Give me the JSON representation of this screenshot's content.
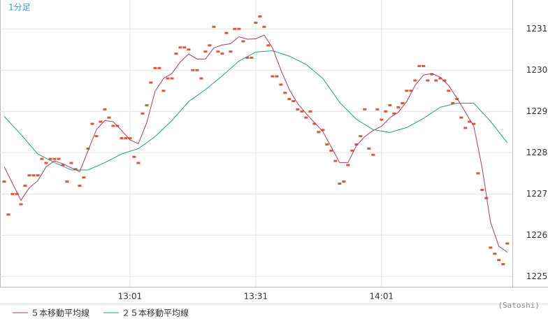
{
  "chart_data": {
    "type": "line",
    "title": "1分足",
    "credit": "(Satoshi)",
    "x": [
      0,
      1,
      2,
      3,
      4,
      5,
      6,
      7,
      8,
      9,
      10,
      11,
      12,
      13,
      14,
      15,
      16,
      17,
      18,
      19,
      20,
      21,
      22,
      23,
      24,
      25,
      26,
      27,
      28,
      29,
      30,
      31,
      32,
      33,
      34,
      35,
      36,
      37,
      38,
      39,
      40,
      41,
      42,
      43,
      44,
      45,
      46,
      47,
      48,
      49,
      50,
      51,
      52,
      53,
      54,
      55,
      56,
      57,
      58,
      59,
      60,
      61,
      62,
      63,
      64,
      65,
      66,
      67,
      68,
      69,
      70,
      71,
      72,
      73,
      74,
      75,
      76,
      77,
      78,
      79,
      80,
      81,
      82,
      83,
      84,
      85,
      86,
      87,
      88,
      89,
      90,
      91,
      92,
      93,
      94,
      95,
      96,
      97,
      98,
      99,
      100,
      101,
      102,
      103,
      104,
      105,
      106,
      107,
      108,
      109,
      110,
      111,
      112,
      113,
      114,
      115,
      116,
      117,
      118,
      119,
      120
    ],
    "xlim": [
      -1,
      121.2
    ],
    "xticks": [
      {
        "value": 30,
        "label": "13:01"
      },
      {
        "value": 60,
        "label": "13:31"
      },
      {
        "value": 90,
        "label": "14:01"
      }
    ],
    "ylim": [
      1224.75,
      1231.7
    ],
    "yticks": [
      1225,
      1226,
      1227,
      1228,
      1229,
      1230,
      1231
    ],
    "grid": true,
    "legend": "bottom-left",
    "series": [
      {
        "color": "#d9583b",
        "marker": "dash",
        "values": [
          1227.3,
          1226.5,
          1227.0,
          1227.0,
          1226.75,
          1227.2,
          1227.45,
          1227.45,
          1227.45,
          1227.85,
          1227.75,
          1227.85,
          1227.85,
          1227.85,
          1227.7,
          1227.3,
          1227.75,
          1227.6,
          1227.2,
          1227.4,
          1228.1,
          1228.7,
          1228.4,
          1228.75,
          1229.05,
          1228.85,
          1228.65,
          1228.65,
          1228.35,
          1228.35,
          1228.35,
          1227.9,
          1227.75,
          1228.95,
          1229.15,
          1229.7,
          1230.05,
          1230.05,
          1229.5,
          1229.8,
          1229.8,
          1230.4,
          1230.55,
          1230.55,
          1230.5,
          1230.0,
          1230.0,
          1229.8,
          1230.45,
          1230.6,
          1231.05,
          1230.45,
          1230.4,
          1230.9,
          1230.45,
          1231.0,
          1231.0,
          1230.7,
          1230.3,
          1230.3,
          1231.15,
          1231.3,
          1231.05,
          1230.6,
          1229.85,
          1229.85,
          1229.65,
          1229.45,
          1229.3,
          1229.25,
          1229.05,
          1229.0,
          1228.85,
          1229.0,
          1228.7,
          1228.5,
          1228.55,
          1228.2,
          1228.05,
          1227.8,
          1227.25,
          1227.3,
          1227.7,
          1228.05,
          1228.2,
          1228.4,
          1229.05,
          1228.1,
          1227.95,
          1229.05,
          1228.8,
          1229.0,
          1229.15,
          1228.95,
          1229.1,
          1229.2,
          1229.5,
          1229.5,
          1229.75,
          1230.1,
          1230.1,
          1229.75,
          1229.9,
          1229.75,
          1229.8,
          1229.75,
          1229.5,
          1229.2,
          1229.3,
          1228.85,
          1228.6,
          1228.75,
          1228.7,
          1227.5,
          1227.1,
          1226.9,
          1225.7,
          1225.55,
          1225.4,
          1225.3,
          1225.8
        ]
      },
      {
        "name": "５本移動平均線",
        "color": "#a83c64",
        "marker": "line",
        "x": [
          0,
          2,
          4,
          6,
          8,
          10,
          12,
          14,
          16,
          18,
          20,
          22,
          24,
          26,
          28,
          30,
          32,
          34,
          36,
          38,
          40,
          42,
          44,
          46,
          48,
          50,
          52,
          54,
          56,
          58,
          60,
          62,
          64,
          66,
          68,
          70,
          72,
          74,
          76,
          78,
          80,
          82,
          84,
          86,
          88,
          90,
          92,
          94,
          96,
          98,
          100,
          102,
          104,
          106,
          108,
          110,
          112,
          114,
          116,
          118,
          120
        ],
        "values": [
          1227.66,
          1227.25,
          1226.85,
          1227.15,
          1227.32,
          1227.66,
          1227.8,
          1227.73,
          1227.63,
          1227.54,
          1228.05,
          1228.56,
          1228.78,
          1228.75,
          1228.54,
          1228.31,
          1228.22,
          1228.73,
          1229.49,
          1229.8,
          1229.92,
          1230.2,
          1230.39,
          1230.27,
          1230.27,
          1230.54,
          1230.61,
          1230.64,
          1230.81,
          1230.75,
          1230.76,
          1230.85,
          1230.54,
          1230.0,
          1229.53,
          1229.19,
          1228.95,
          1228.73,
          1228.51,
          1228.14,
          1227.76,
          1227.76,
          1228.17,
          1228.39,
          1228.54,
          1228.64,
          1228.85,
          1228.98,
          1229.24,
          1229.63,
          1229.88,
          1229.92,
          1229.83,
          1229.63,
          1229.32,
          1228.98,
          1228.64,
          1227.63,
          1226.31,
          1225.73,
          1225.59
        ]
      },
      {
        "name": "２５本移動平均線",
        "color": "#1f9e80",
        "marker": "line",
        "x": [
          0,
          4,
          8,
          12,
          16,
          20,
          24,
          28,
          32,
          36,
          40,
          44,
          48,
          52,
          56,
          60,
          64,
          68,
          72,
          76,
          80,
          84,
          88,
          92,
          96,
          100,
          104,
          108,
          112,
          116,
          120
        ],
        "values": [
          1228.88,
          1228.44,
          1227.97,
          1227.76,
          1227.58,
          1227.58,
          1227.76,
          1227.97,
          1228.1,
          1228.39,
          1228.78,
          1229.24,
          1229.53,
          1229.86,
          1230.22,
          1230.44,
          1230.47,
          1230.34,
          1230.14,
          1229.8,
          1229.22,
          1228.81,
          1228.56,
          1228.49,
          1228.61,
          1228.83,
          1229.1,
          1229.2,
          1229.2,
          1228.76,
          1228.24
        ]
      }
    ]
  }
}
